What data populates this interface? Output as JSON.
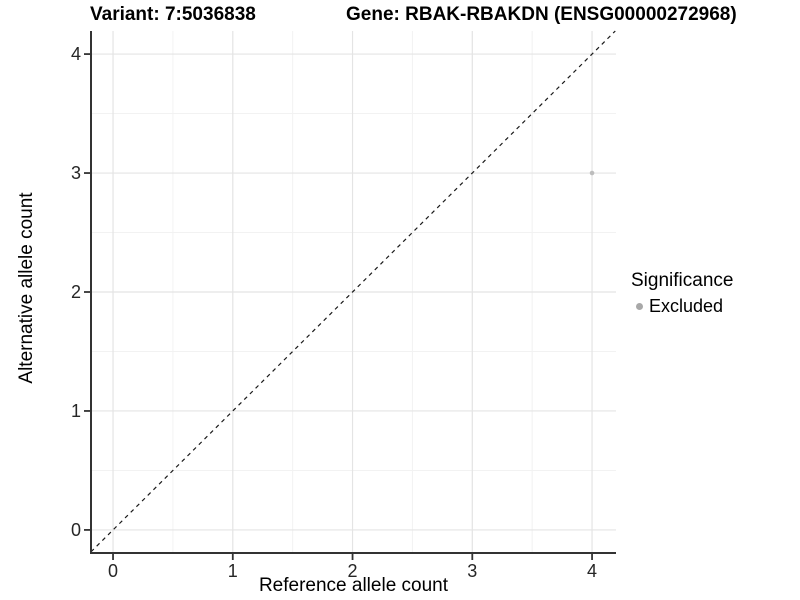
{
  "titles": {
    "variant": "Variant: 7:5036838",
    "gene": "Gene: RBAK-RBAKDN (ENSG00000272968)"
  },
  "chart_data": {
    "type": "scatter",
    "xlabel": "Reference allele count",
    "ylabel": "Alternative allele count",
    "xticks": [
      0,
      1,
      2,
      3,
      4
    ],
    "yticks": [
      0,
      1,
      2,
      3,
      4
    ],
    "xlim": [
      -0.184,
      4.2
    ],
    "ylim": [
      -0.194,
      4.194
    ],
    "minor_interval": 0.5,
    "grid": "major+minor",
    "points": [
      {
        "x": 4,
        "y": 3,
        "significance": "Excluded"
      }
    ],
    "reference_line": {
      "type": "identity",
      "style": "dashed"
    },
    "legend": {
      "title": "Significance",
      "position": "right",
      "items": [
        {
          "label": "Excluded",
          "color": "#a8a8a8"
        }
      ]
    }
  },
  "colors": {
    "point": "#bdbdbd",
    "grid_major": "#e4e4e4",
    "grid_minor": "#f2f2f2",
    "axis": "#333333",
    "tick_label": "#262626",
    "dashed_line": "#1a1a1a"
  }
}
